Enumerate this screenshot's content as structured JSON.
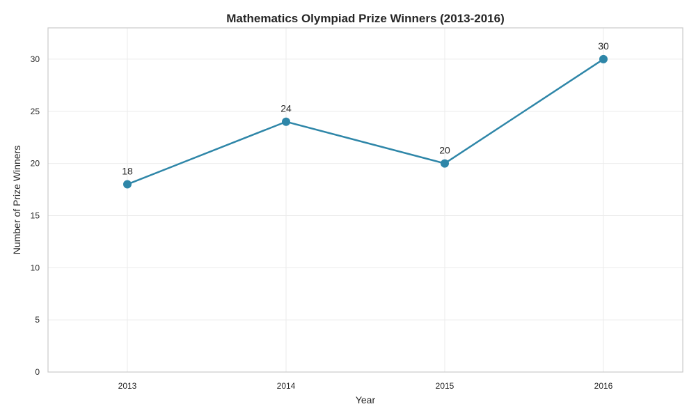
{
  "chart_data": {
    "type": "line",
    "title": "Mathematics Olympiad Prize Winners (2013-2016)",
    "xlabel": "Year",
    "ylabel": "Number of Prize Winners",
    "categories": [
      "2013",
      "2014",
      "2015",
      "2016"
    ],
    "series": [
      {
        "values": [
          18,
          24,
          20,
          30
        ]
      }
    ],
    "ylim": [
      0,
      33
    ],
    "yticks": [
      0,
      5,
      10,
      15,
      20,
      25,
      30
    ],
    "grid": true,
    "legend": "none",
    "colors": {
      "line": "#2e86a8",
      "marker": "#2e86a8"
    }
  }
}
